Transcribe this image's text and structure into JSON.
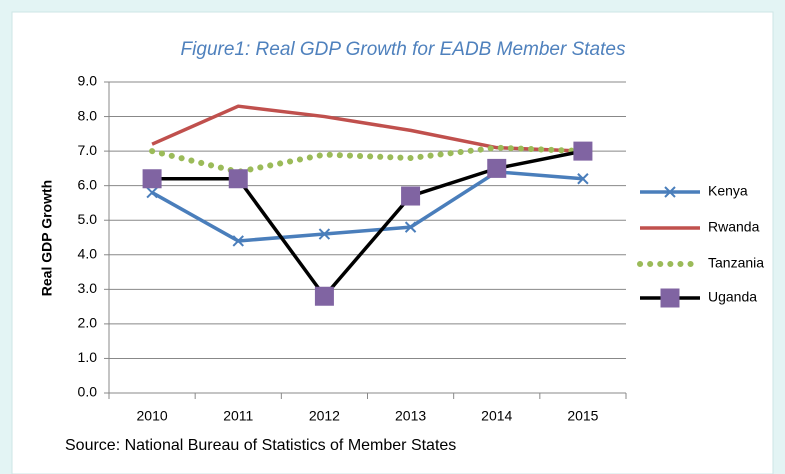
{
  "chart_data": {
    "type": "line",
    "title": "Figure1: Real GDP Growth for EADB Member States",
    "y_label": "Real GDP Growth",
    "source": "Source: National Bureau of Statistics of Member States",
    "categories": [
      "2010",
      "2011",
      "2012",
      "2013",
      "2014",
      "2015"
    ],
    "series": [
      {
        "name": "Kenya",
        "color": "#4a7ebb",
        "marker": "x",
        "marker_color": "#4a7ebb",
        "dash": "solid",
        "values": [
          5.8,
          4.4,
          4.6,
          4.8,
          6.4,
          6.2
        ]
      },
      {
        "name": "Rwanda",
        "color": "#c0504d",
        "marker": "none",
        "marker_color": "#c0504d",
        "dash": "solid",
        "values": [
          7.2,
          8.3,
          8.0,
          7.6,
          7.1,
          7.0
        ]
      },
      {
        "name": "Tanzania",
        "color": "#9bbb59",
        "marker": "none",
        "marker_color": "#9bbb59",
        "dash": "dot",
        "values": [
          7.0,
          6.4,
          6.9,
          6.8,
          7.1,
          7.0
        ]
      },
      {
        "name": "Uganda",
        "color": "#000000",
        "marker": "square",
        "marker_color": "#8064a2",
        "dash": "solid",
        "values": [
          6.2,
          6.2,
          2.8,
          5.7,
          6.5,
          7.0
        ]
      }
    ],
    "ylim": [
      0,
      9
    ],
    "yticks": [
      {
        "value": 0,
        "label": "0.0"
      },
      {
        "value": 1,
        "label": "1.0"
      },
      {
        "value": 2,
        "label": "2.0"
      },
      {
        "value": 3,
        "label": "3.0"
      },
      {
        "value": 4,
        "label": "4.0"
      },
      {
        "value": 5,
        "label": "5.0"
      },
      {
        "value": 6,
        "label": "6.0"
      },
      {
        "value": 7,
        "label": "7.0"
      },
      {
        "value": 8,
        "label": "8.0"
      },
      {
        "value": 9,
        "label": "9.0"
      }
    ],
    "grid": true,
    "legend": "right"
  }
}
